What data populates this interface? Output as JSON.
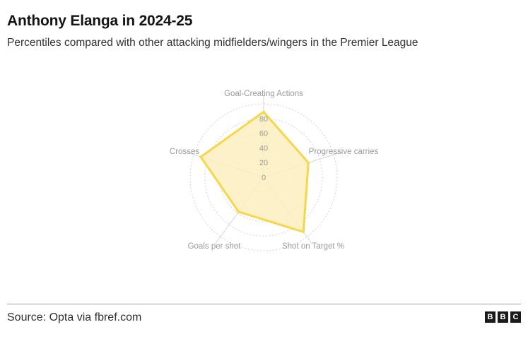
{
  "header": {
    "title": "Anthony Elanga in 2024-25",
    "subtitle": "Percentiles compared with other attacking midfielders/wingers in the Premier League"
  },
  "footer": {
    "source": "Source: Opta via fbref.com",
    "logo_letters": [
      "B",
      "B",
      "C"
    ]
  },
  "colors": {
    "fill": "#fdefc0",
    "stroke": "#f7d74a",
    "grid": "#c8c8c8",
    "spoke": "#d6d6d6"
  },
  "chart_data": {
    "type": "radar",
    "categories": [
      "Goal-Creating Actions",
      "Progressive carries",
      "Shot on Target %",
      "Goals per shot",
      "Crosses"
    ],
    "values": [
      89,
      64,
      92,
      58,
      90
    ],
    "rlim": [
      0,
      100
    ],
    "rticks": [
      0,
      20,
      40,
      60,
      80
    ],
    "grid": true
  }
}
